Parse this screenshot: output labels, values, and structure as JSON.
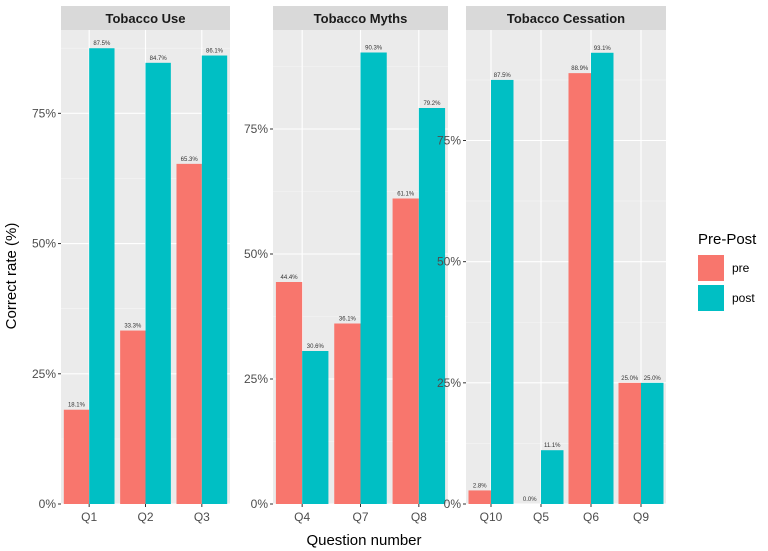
{
  "chart_data": {
    "type": "bar",
    "xlabel": "Question number",
    "ylabel": "Correct rate (%)",
    "legend": {
      "title": "Pre-Post",
      "position": "right",
      "entries": [
        {
          "name": "pre",
          "color": "#F8766D"
        },
        {
          "name": "post",
          "color": "#00BFC4"
        }
      ]
    },
    "panels": [
      {
        "title": "Tobacco Use",
        "categories": [
          "Q1",
          "Q2",
          "Q3"
        ],
        "ylim": [
          0,
          91
        ],
        "yticks": [
          0,
          25,
          50,
          75
        ],
        "ytick_labels": [
          "0%",
          "25%",
          "50%",
          "75%"
        ],
        "series": [
          {
            "name": "pre",
            "values": [
              18.1,
              33.3,
              65.3
            ],
            "labels": [
              "18.1%",
              "33.3%",
              "65.3%"
            ]
          },
          {
            "name": "post",
            "values": [
              87.5,
              84.7,
              86.1
            ],
            "labels": [
              "87.5%",
              "84.7%",
              "86.1%"
            ]
          }
        ]
      },
      {
        "title": "Tobacco Myths",
        "categories": [
          "Q4",
          "Q7",
          "Q8"
        ],
        "ylim": [
          0,
          94.8
        ],
        "yticks": [
          0,
          25,
          50,
          75
        ],
        "ytick_labels": [
          "0%",
          "25%",
          "50%",
          "75%"
        ],
        "series": [
          {
            "name": "pre",
            "values": [
              44.4,
              36.1,
              61.1
            ],
            "labels": [
              "44.4%",
              "36.1%",
              "61.1%"
            ]
          },
          {
            "name": "post",
            "values": [
              30.6,
              90.3,
              79.2
            ],
            "labels": [
              "30.6%",
              "90.3%",
              "79.2%"
            ]
          }
        ]
      },
      {
        "title": "Tobacco Cessation",
        "categories": [
          "Q10",
          "Q5",
          "Q6",
          "Q9"
        ],
        "ylim": [
          0,
          97.8
        ],
        "yticks": [
          0,
          25,
          50,
          75
        ],
        "ytick_labels": [
          "0%",
          "25%",
          "50%",
          "75%"
        ],
        "series": [
          {
            "name": "pre",
            "values": [
              2.8,
              0.0,
              88.9,
              25.0
            ],
            "labels": [
              "2.8%",
              "0.0%",
              "88.9%",
              "25.0%"
            ]
          },
          {
            "name": "post",
            "values": [
              87.5,
              11.1,
              93.1,
              25.0
            ],
            "labels": [
              "87.5%",
              "11.1%",
              "93.1%",
              "25.0%"
            ]
          }
        ]
      }
    ]
  }
}
